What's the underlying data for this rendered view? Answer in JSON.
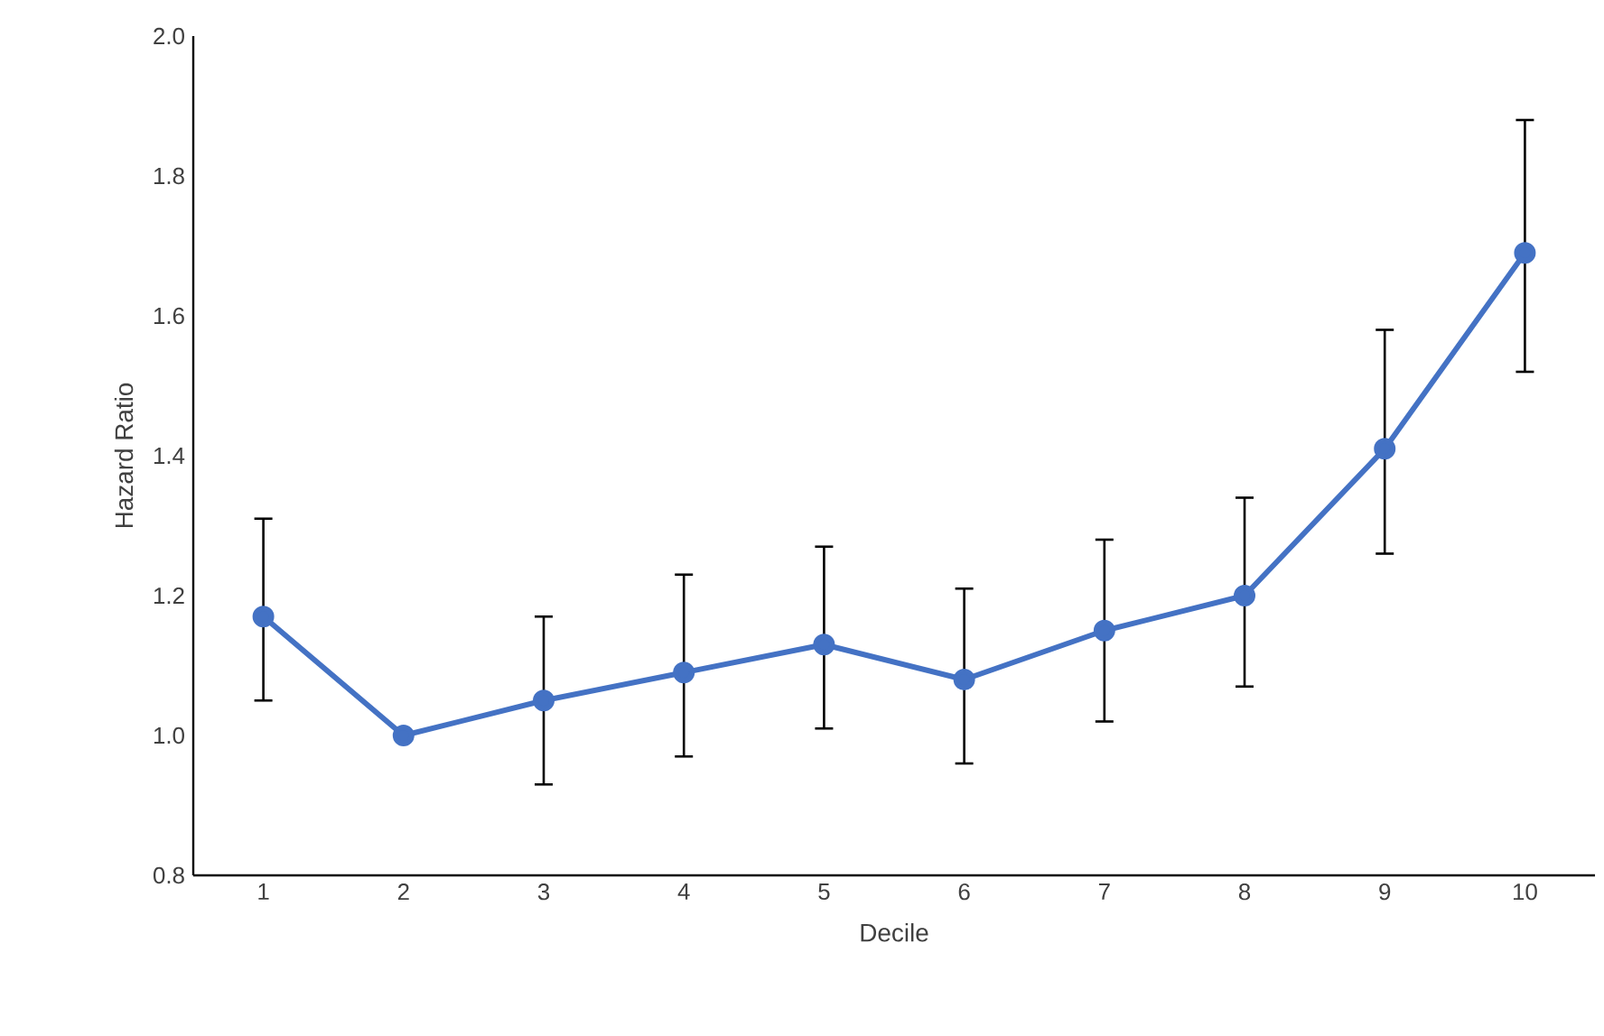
{
  "chart_data": {
    "type": "line",
    "xlabel": "Decile",
    "ylabel": "Hazard Ratio",
    "categories": [
      "1",
      "2",
      "3",
      "4",
      "5",
      "6",
      "7",
      "8",
      "9",
      "10"
    ],
    "values": [
      1.17,
      1.0,
      1.05,
      1.09,
      1.13,
      1.08,
      1.15,
      1.2,
      1.41,
      1.69
    ],
    "errors": [
      [
        1.05,
        1.31
      ],
      null,
      [
        0.93,
        1.17
      ],
      [
        0.97,
        1.23
      ],
      [
        1.01,
        1.27
      ],
      [
        0.96,
        1.21
      ],
      [
        1.02,
        1.28
      ],
      [
        1.07,
        1.34
      ],
      [
        1.26,
        1.58
      ],
      [
        1.52,
        1.88
      ]
    ],
    "color": "#4472c4",
    "marker": "circle",
    "line_style": "solid",
    "ylim": [
      0.8,
      2.0
    ],
    "yticks": [
      {
        "value": 0.8,
        "label": "0.8"
      },
      {
        "value": 1.0,
        "label": "1.0"
      },
      {
        "value": 1.2,
        "label": "1.2"
      },
      {
        "value": 1.4,
        "label": "1.4"
      },
      {
        "value": 1.6,
        "label": "1.6"
      },
      {
        "value": 1.8,
        "label": "1.8"
      },
      {
        "value": 2.0,
        "label": "2.0"
      }
    ],
    "grid": false
  }
}
